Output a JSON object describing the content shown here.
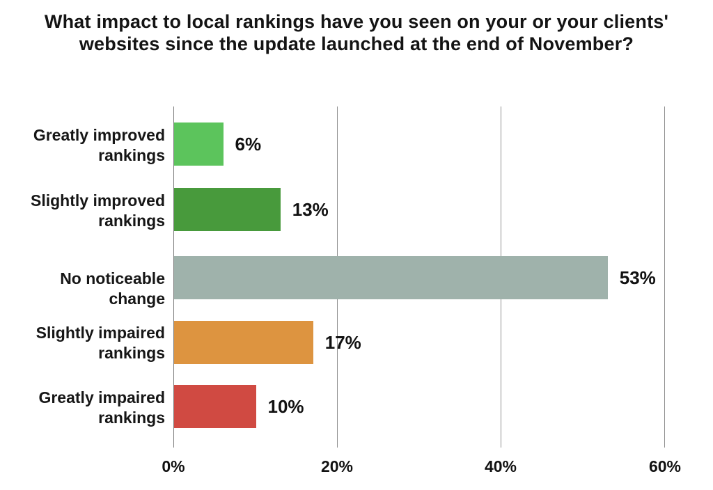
{
  "chart_data": {
    "type": "bar",
    "orientation": "horizontal",
    "title": "What impact to local rankings have you seen on your or your clients' websites since the update launched at the end of November?",
    "title_lines": [
      "What impact to local rankings have you seen on your or your clients'",
      "websites since the update launched at the end of November?"
    ],
    "categories": [
      "Greatly improved rankings",
      "Slightly improved rankings",
      "No noticeable change",
      "Slightly impaired rankings",
      "Greatly impaired rankings"
    ],
    "label_lines": [
      [
        "Greatly improved",
        "rankings"
      ],
      [
        "Slightly improved",
        "rankings"
      ],
      [
        "No noticeable change",
        ""
      ],
      [
        "Slightly impaired",
        "rankings"
      ],
      [
        "Greatly impaired",
        "rankings"
      ]
    ],
    "values": [
      6,
      13,
      53,
      17,
      10
    ],
    "value_labels": [
      "6%",
      "13%",
      "53%",
      "17%",
      "10%"
    ],
    "bar_colors": [
      "#5cc45c",
      "#489a3c",
      "#9fb2ab",
      "#dd9440",
      "#d04a42"
    ],
    "xlabel": "",
    "ylabel": "",
    "xlim": [
      0,
      60
    ],
    "x_ticks": [
      "0%",
      "20%",
      "40%",
      "60%"
    ],
    "x_tick_values": [
      0,
      20,
      40,
      60
    ],
    "grid": "vertical-only",
    "legend": "none",
    "background_color": "#ffffff",
    "gridline_color": "#8f8f8f",
    "text_color": "#141414"
  }
}
